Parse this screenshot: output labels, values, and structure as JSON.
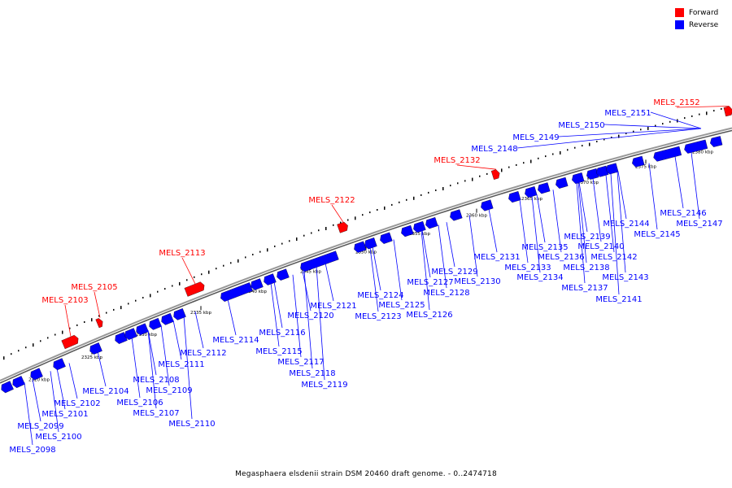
{
  "colors": {
    "forward": "#ff0000",
    "reverse": "#0000ff",
    "backbone": "#888888",
    "tick": "#000000"
  },
  "legend": {
    "forward": "Forward",
    "reverse": "Reverse"
  },
  "caption": "Megasphaera elsdenii strain DSM 20460 draft genome. - 0..2474718",
  "ruler": {
    "labels": [
      "2320 kbp",
      "2325 kbp",
      "2330 kbp",
      "2335 kbp",
      "2340 kbp",
      "2345 kbp",
      "2350 kbp",
      "2355 kbp",
      "2360 kbp",
      "2365 kbp",
      "2370 kbp",
      "2375 kbp",
      "2380 kbp"
    ]
  },
  "genes": {
    "forward": [
      "MELS_2103",
      "MELS_2105",
      "MELS_2113",
      "MELS_2122",
      "MELS_2132",
      "MELS_2152"
    ],
    "reverse": [
      "MELS_2098",
      "MELS_2099",
      "MELS_2100",
      "MELS_2101",
      "MELS_2102",
      "MELS_2104",
      "MELS_2106",
      "MELS_2107",
      "MELS_2108",
      "MELS_2109",
      "MELS_2110",
      "MELS_2111",
      "MELS_2112",
      "MELS_2114",
      "MELS_2115",
      "MELS_2116",
      "MELS_2117",
      "MELS_2118",
      "MELS_2119",
      "MELS_2120",
      "MELS_2121",
      "MELS_2123",
      "MELS_2124",
      "MELS_2125",
      "MELS_2126",
      "MELS_2127",
      "MELS_2128",
      "MELS_2129",
      "MELS_2130",
      "MELS_2131",
      "MELS_2133",
      "MELS_2134",
      "MELS_2135",
      "MELS_2136",
      "MELS_2137",
      "MELS_2138",
      "MELS_2139",
      "MELS_2140",
      "MELS_2141",
      "MELS_2142",
      "MELS_2143",
      "MELS_2144",
      "MELS_2145",
      "MELS_2146",
      "MELS_2147",
      "MELS_2148",
      "MELS_2149",
      "MELS_2150",
      "MELS_2151"
    ]
  }
}
